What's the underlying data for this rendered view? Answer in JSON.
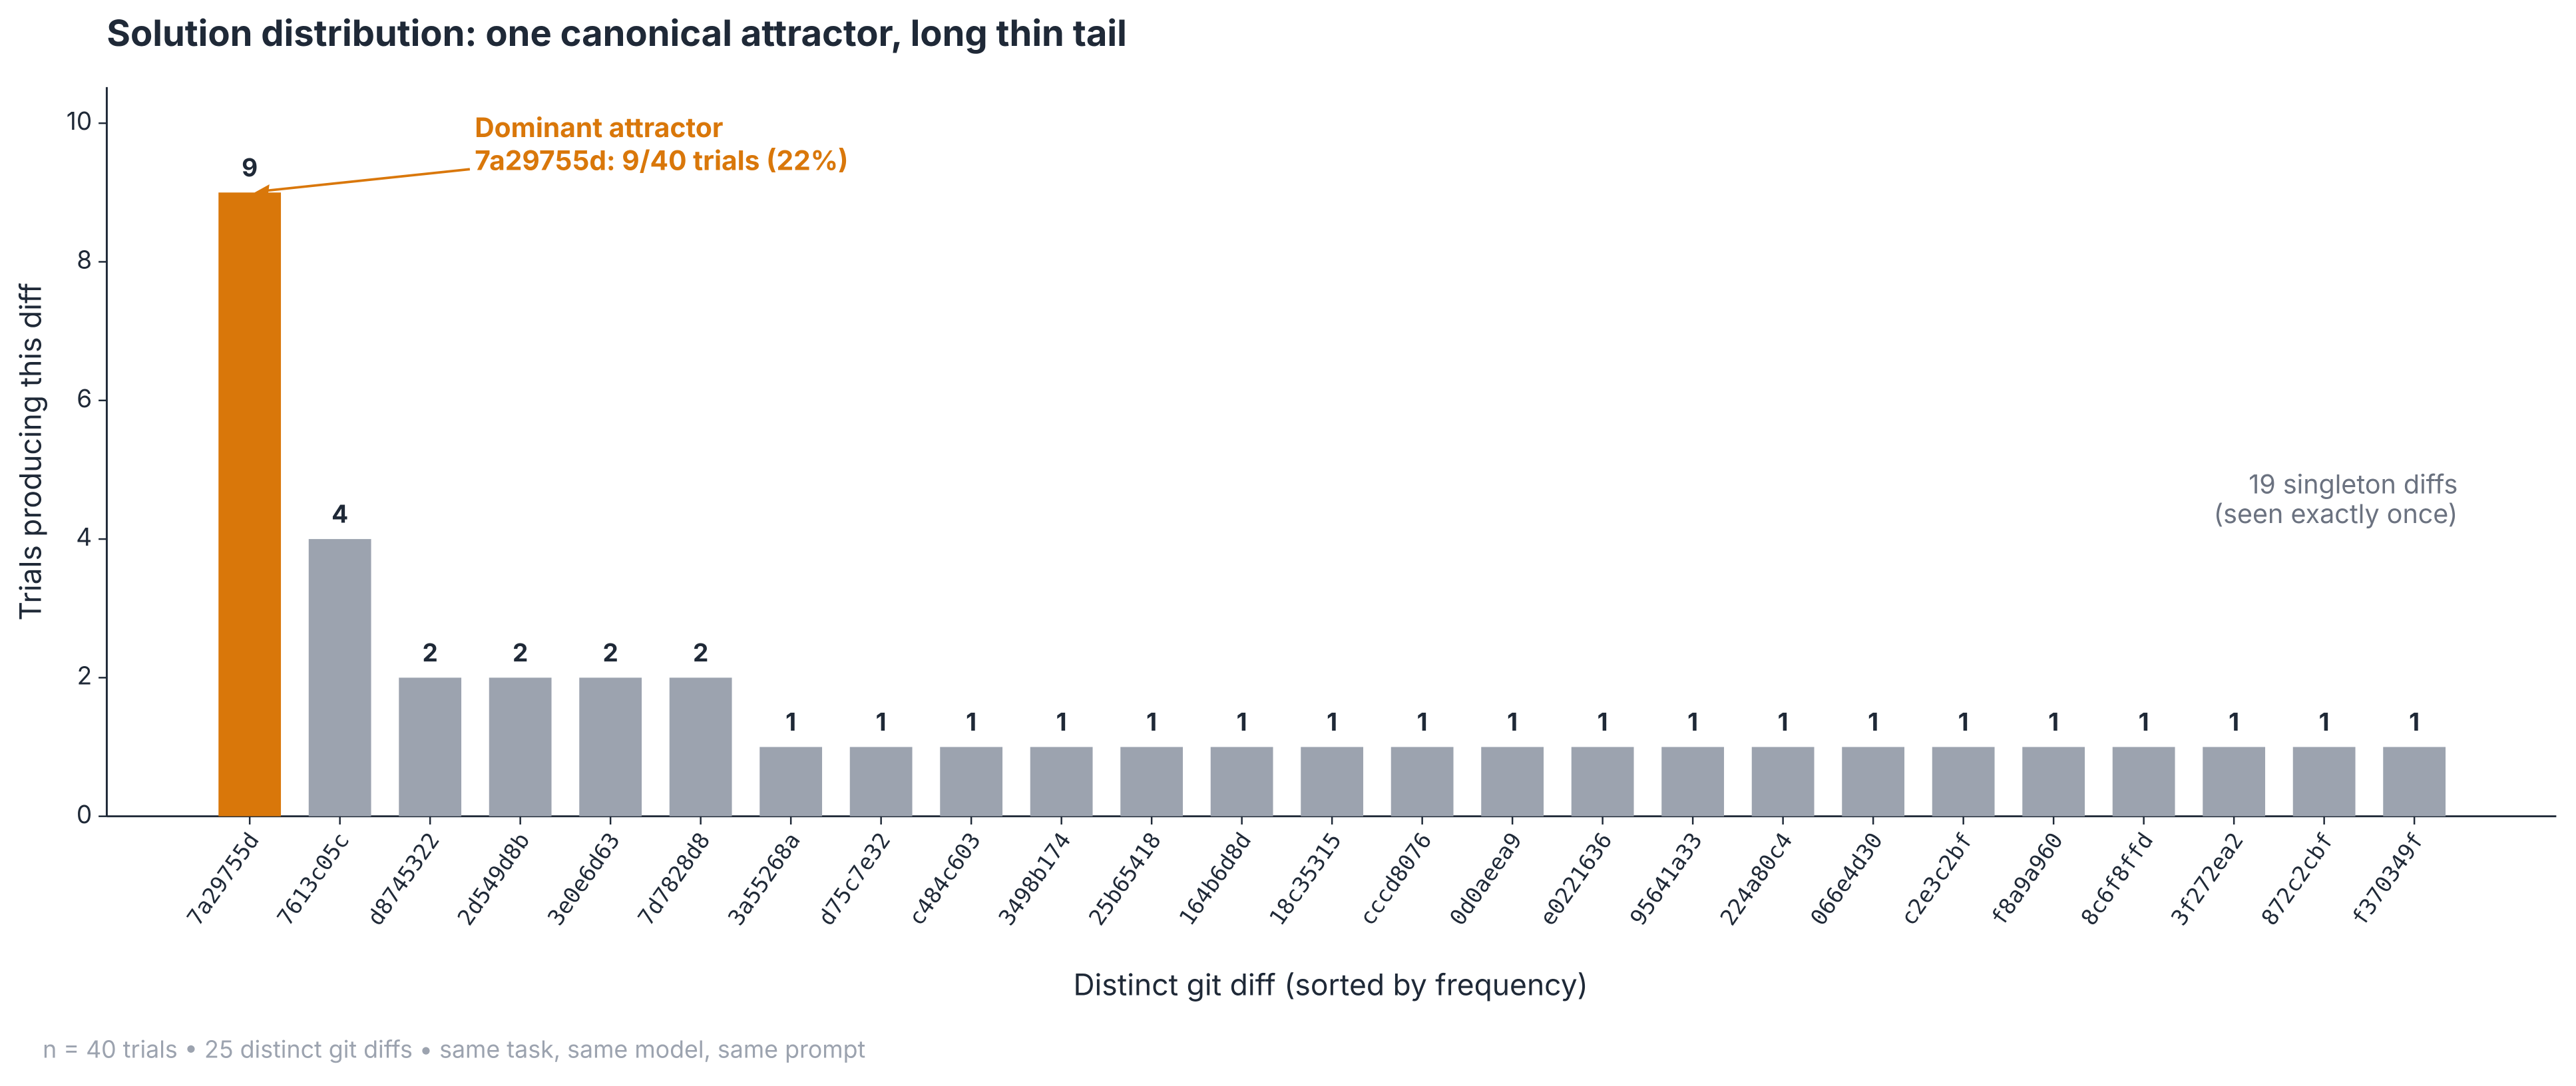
{
  "chart_data": {
    "type": "bar",
    "title": "Solution distribution: one canonical attractor, long thin tail",
    "x_label": "Distinct git diff (sorted by frequency)",
    "y_label": "Trials producing this diff",
    "categories": [
      "7a29755d",
      "7613c05c",
      "d8745322",
      "2d549d8b",
      "3e0e6d63",
      "7d7828d8",
      "3a55268a",
      "d75c7e32",
      "c484c603",
      "3498b174",
      "25b65418",
      "164b6d8d",
      "18c35315",
      "cccd8076",
      "0d0aeea9",
      "e0221636",
      "95641a33",
      "224a80c4",
      "066e4d30",
      "c2e3c2bf",
      "f8a9a960",
      "8c6f8ffd",
      "3f272ea2",
      "872c2cbf",
      "f370349f"
    ],
    "values": [
      9,
      4,
      2,
      2,
      2,
      2,
      1,
      1,
      1,
      1,
      1,
      1,
      1,
      1,
      1,
      1,
      1,
      1,
      1,
      1,
      1,
      1,
      1,
      1,
      1
    ],
    "colors": [
      "#d9770a",
      "#9ca3af",
      "#9ca3af",
      "#9ca3af",
      "#9ca3af",
      "#9ca3af",
      "#9ca3af",
      "#9ca3af",
      "#9ca3af",
      "#9ca3af",
      "#9ca3af",
      "#9ca3af",
      "#9ca3af",
      "#9ca3af",
      "#9ca3af",
      "#9ca3af",
      "#9ca3af",
      "#9ca3af",
      "#9ca3af",
      "#9ca3af",
      "#9ca3af",
      "#9ca3af",
      "#9ca3af",
      "#9ca3af",
      "#9ca3af"
    ],
    "ylim": [
      0,
      10.5
    ],
    "yticks": [
      0,
      2,
      4,
      6,
      8,
      10
    ],
    "grid": false,
    "annotation": {
      "lines": [
        "Dominant attractor",
        "7a29755d: 9/40 trials (22%)"
      ],
      "color": "#d9770a"
    },
    "note": {
      "lines": [
        "19 singleton diffs",
        "(seen exactly once)"
      ]
    },
    "footnote": "n = 40 trials  •  25 distinct git diffs  •  same task, same model, same prompt"
  }
}
